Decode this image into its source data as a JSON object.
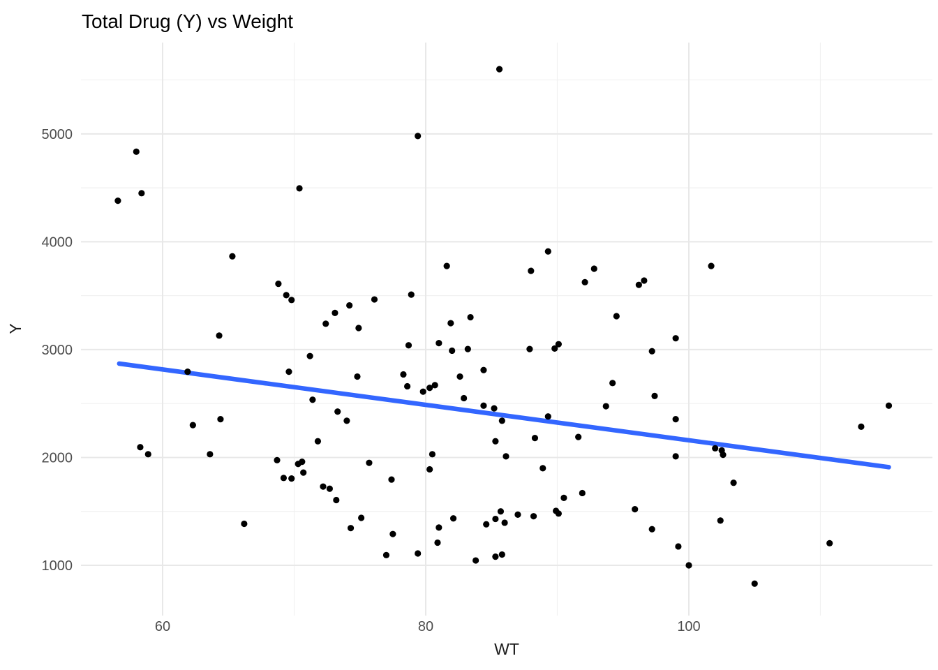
{
  "title": "Total Drug (Y) vs Weight",
  "chart_data": {
    "type": "scatter",
    "title": "Total Drug (Y) vs Weight",
    "xlabel": "WT",
    "ylabel": "Y",
    "x_ticks": [
      60,
      80,
      100
    ],
    "x_minor_ticks": [
      70,
      90,
      110
    ],
    "y_ticks": [
      1000,
      2000,
      3000,
      4000,
      5000
    ],
    "y_minor_ticks": [
      1500,
      2500,
      3500,
      4500,
      5500
    ],
    "xlim": [
      53.8,
      118.4
    ],
    "ylim": [
      550,
      5850
    ],
    "grid": "on",
    "legend": "none",
    "point_color": "#000000",
    "trend_color": "#3366FF",
    "major_grid_color": "#E8E8E8",
    "minor_grid_color": "#F1F1F1",
    "axis_text_color": "#4D4D4D",
    "trend_line": {
      "x1": 56.7,
      "y1": 2870,
      "x2": 115.2,
      "y2": 1910
    },
    "points": [
      [
        58.0,
        4835
      ],
      [
        58.4,
        4450
      ],
      [
        56.6,
        4380
      ],
      [
        70.4,
        4495
      ],
      [
        85.6,
        5600
      ],
      [
        79.4,
        4980
      ],
      [
        65.3,
        3865
      ],
      [
        68.8,
        3610
      ],
      [
        69.4,
        3505
      ],
      [
        69.8,
        3460
      ],
      [
        74.2,
        3410
      ],
      [
        73.1,
        3340
      ],
      [
        72.4,
        3240
      ],
      [
        74.9,
        3200
      ],
      [
        64.3,
        3130
      ],
      [
        71.2,
        2940
      ],
      [
        61.9,
        2795
      ],
      [
        69.6,
        2795
      ],
      [
        74.8,
        2750
      ],
      [
        71.4,
        2535
      ],
      [
        73.3,
        2425
      ],
      [
        74.0,
        2340
      ],
      [
        64.4,
        2355
      ],
      [
        62.3,
        2300
      ],
      [
        89.3,
        3910
      ],
      [
        81.6,
        3775
      ],
      [
        88.0,
        3730
      ],
      [
        92.1,
        3625
      ],
      [
        92.8,
        3750
      ],
      [
        96.2,
        3600
      ],
      [
        96.6,
        3640
      ],
      [
        76.1,
        3465
      ],
      [
        78.9,
        3510
      ],
      [
        83.4,
        3300
      ],
      [
        81.9,
        3245
      ],
      [
        94.5,
        3310
      ],
      [
        78.7,
        3040
      ],
      [
        81.0,
        3060
      ],
      [
        82.0,
        2990
      ],
      [
        83.2,
        3005
      ],
      [
        87.9,
        3005
      ],
      [
        89.8,
        3010
      ],
      [
        90.1,
        3050
      ],
      [
        78.3,
        2770
      ],
      [
        78.6,
        2660
      ],
      [
        79.8,
        2610
      ],
      [
        80.3,
        2645
      ],
      [
        80.7,
        2670
      ],
      [
        82.6,
        2750
      ],
      [
        84.4,
        2810
      ],
      [
        82.9,
        2550
      ],
      [
        84.4,
        2480
      ],
      [
        85.2,
        2455
      ],
      [
        85.8,
        2340
      ],
      [
        89.3,
        2380
      ],
      [
        94.2,
        2690
      ],
      [
        93.7,
        2475
      ],
      [
        101.7,
        3775
      ],
      [
        99.0,
        3105
      ],
      [
        97.2,
        2985
      ],
      [
        97.4,
        2570
      ],
      [
        99.0,
        2355
      ],
      [
        115.2,
        2480
      ],
      [
        113.1,
        2285
      ],
      [
        58.3,
        2095
      ],
      [
        58.9,
        2030
      ],
      [
        63.6,
        2030
      ],
      [
        68.7,
        1975
      ],
      [
        71.8,
        2150
      ],
      [
        70.3,
        1940
      ],
      [
        70.6,
        1960
      ],
      [
        70.7,
        1860
      ],
      [
        69.2,
        1810
      ],
      [
        69.8,
        1805
      ],
      [
        72.2,
        1730
      ],
      [
        72.7,
        1710
      ],
      [
        73.2,
        1605
      ],
      [
        75.1,
        1440
      ],
      [
        74.3,
        1345
      ],
      [
        66.2,
        1385
      ],
      [
        85.3,
        2150
      ],
      [
        88.3,
        2180
      ],
      [
        91.6,
        2190
      ],
      [
        80.5,
        2030
      ],
      [
        86.1,
        2010
      ],
      [
        75.7,
        1950
      ],
      [
        80.3,
        1890
      ],
      [
        88.9,
        1900
      ],
      [
        77.4,
        1795
      ],
      [
        90.5,
        1625
      ],
      [
        91.9,
        1670
      ],
      [
        95.9,
        1520
      ],
      [
        89.9,
        1505
      ],
      [
        90.1,
        1480
      ],
      [
        85.7,
        1500
      ],
      [
        87.0,
        1470
      ],
      [
        88.2,
        1455
      ],
      [
        85.3,
        1430
      ],
      [
        82.1,
        1435
      ],
      [
        84.6,
        1380
      ],
      [
        86.0,
        1395
      ],
      [
        81.0,
        1350
      ],
      [
        77.5,
        1290
      ],
      [
        80.9,
        1210
      ],
      [
        79.4,
        1110
      ],
      [
        77.0,
        1095
      ],
      [
        83.8,
        1045
      ],
      [
        85.3,
        1080
      ],
      [
        85.8,
        1100
      ],
      [
        102.0,
        2085
      ],
      [
        102.5,
        2065
      ],
      [
        102.6,
        2025
      ],
      [
        99.0,
        2010
      ],
      [
        103.4,
        1765
      ],
      [
        102.4,
        1415
      ],
      [
        97.2,
        1335
      ],
      [
        99.2,
        1175
      ],
      [
        110.7,
        1205
      ],
      [
        100.0,
        1000
      ],
      [
        105.0,
        830
      ]
    ]
  }
}
